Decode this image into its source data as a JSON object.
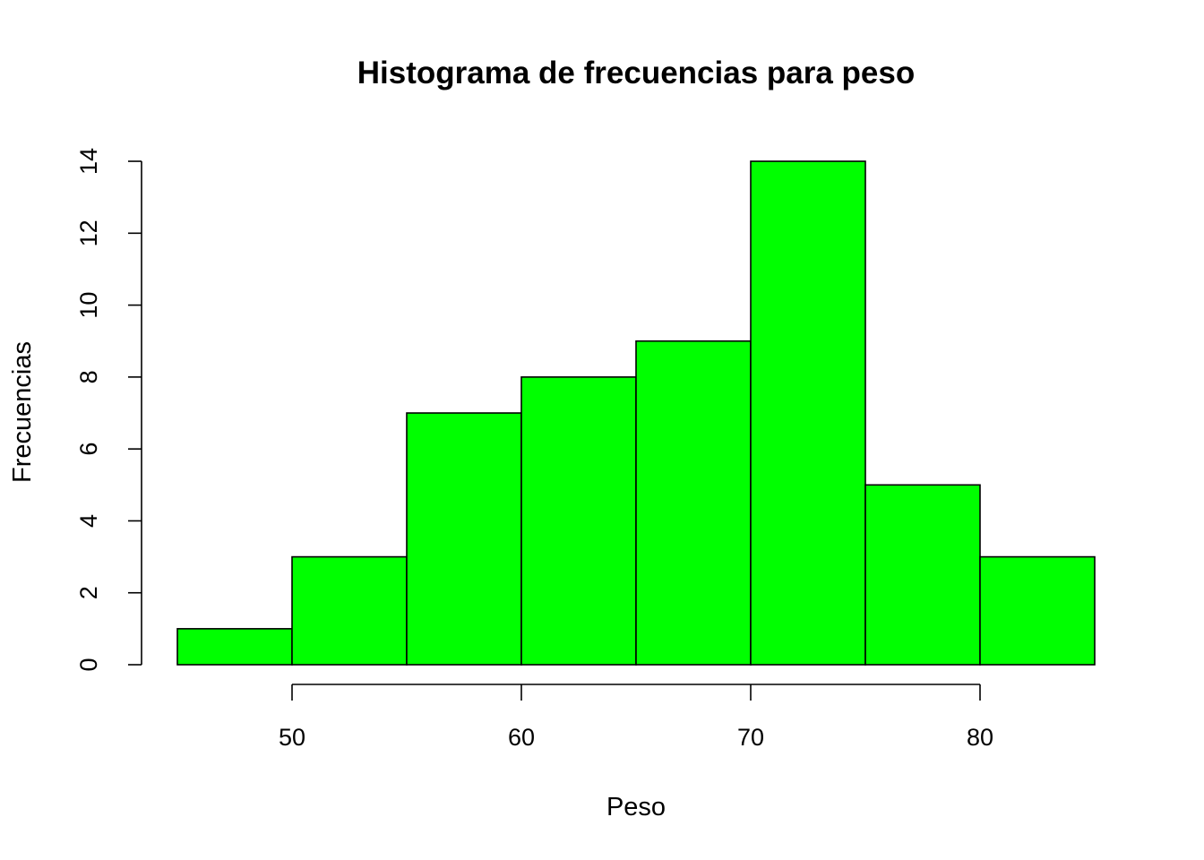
{
  "chart_data": {
    "type": "bar",
    "title": "Histograma de frecuencias para peso",
    "xlabel": "Peso",
    "ylabel": "Frecuencias",
    "bins": [
      {
        "from": 45,
        "to": 50,
        "count": 1
      },
      {
        "from": 50,
        "to": 55,
        "count": 3
      },
      {
        "from": 55,
        "to": 60,
        "count": 7
      },
      {
        "from": 60,
        "to": 65,
        "count": 8
      },
      {
        "from": 65,
        "to": 70,
        "count": 9
      },
      {
        "from": 70,
        "to": 75,
        "count": 14
      },
      {
        "from": 75,
        "to": 80,
        "count": 5
      },
      {
        "from": 80,
        "to": 85,
        "count": 3
      }
    ],
    "x_ticks": [
      50,
      60,
      70,
      80
    ],
    "y_ticks": [
      0,
      2,
      4,
      6,
      8,
      10,
      12,
      14
    ],
    "xlim": [
      45,
      85
    ],
    "ylim": [
      0,
      14
    ],
    "bar_color": "#00ff00",
    "grid": false,
    "legend": "none"
  }
}
